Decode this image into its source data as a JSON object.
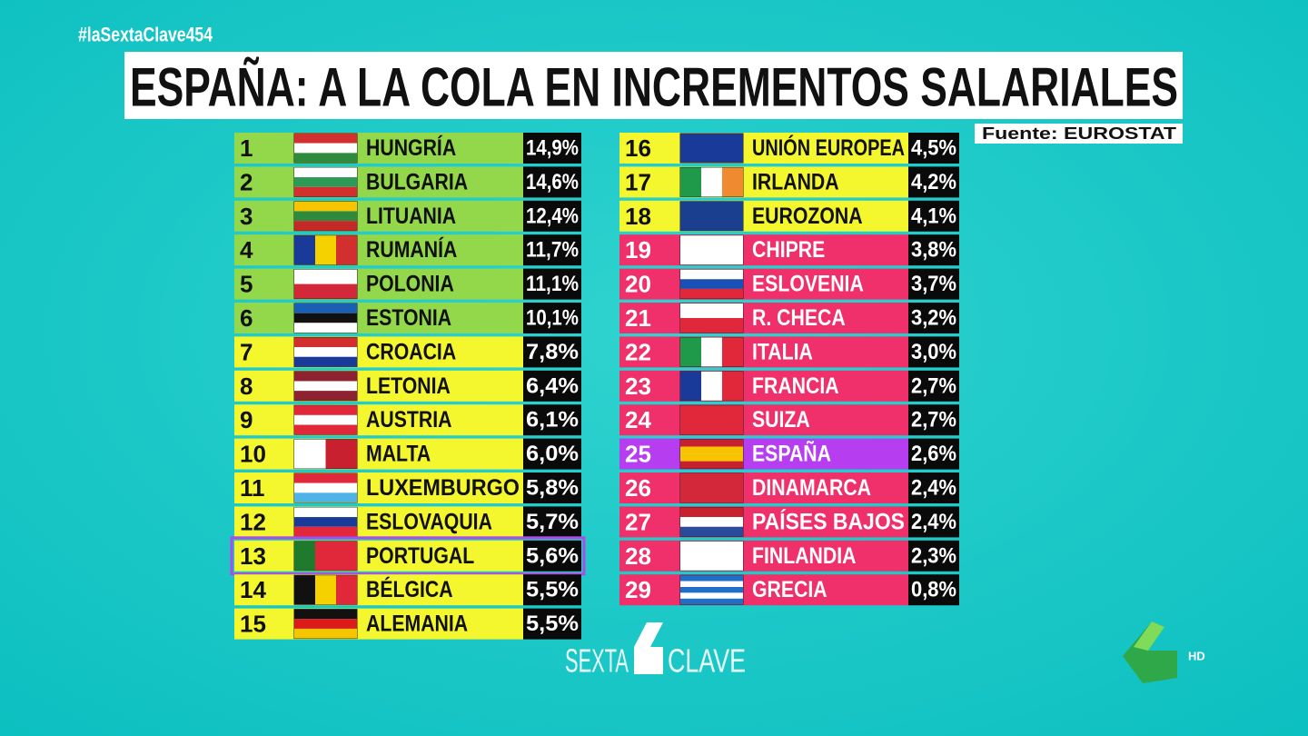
{
  "header": {
    "hashtag": "#laSextaClave454",
    "title": "ESPAÑA: A LA COLA EN INCREMENTOS SALARIALES",
    "source": "Fuente: EUROSTAT"
  },
  "table": {
    "rows": [
      {
        "rank": 1,
        "country": "HUNGRÍA",
        "value": "14,9%",
        "color": "#93d84a",
        "text_color": "#111111"
      },
      {
        "rank": 2,
        "country": "BULGARIA",
        "value": "14,6%",
        "color": "#93d84a",
        "text_color": "#111111"
      },
      {
        "rank": 3,
        "country": "LITUANIA",
        "value": "12,4%",
        "color": "#93d84a",
        "text_color": "#111111"
      },
      {
        "rank": 4,
        "country": "RUMANÍA",
        "value": "11,7%",
        "color": "#93d84a",
        "text_color": "#111111"
      },
      {
        "rank": 5,
        "country": "POLONIA",
        "value": "11,1%",
        "color": "#93d84a",
        "text_color": "#111111"
      },
      {
        "rank": 6,
        "country": "ESTONIA",
        "value": "10,1%",
        "color": "#93d84a",
        "text_color": "#111111"
      },
      {
        "rank": 7,
        "country": "CROACIA",
        "value": "7,8%",
        "color": "#f4f62e",
        "text_color": "#111111"
      },
      {
        "rank": 8,
        "country": "LETONIA",
        "value": "6,4%",
        "color": "#f4f62e",
        "text_color": "#111111"
      },
      {
        "rank": 9,
        "country": "AUSTRIA",
        "value": "6,1%",
        "color": "#f4f62e",
        "text_color": "#111111"
      },
      {
        "rank": 10,
        "country": "MALTA",
        "value": "6,0%",
        "color": "#f4f62e",
        "text_color": "#111111"
      },
      {
        "rank": 11,
        "country": "LUXEMBURGO",
        "value": "5,8%",
        "color": "#f4f62e",
        "text_color": "#111111"
      },
      {
        "rank": 12,
        "country": "ESLOVAQUIA",
        "value": "5,7%",
        "color": "#f4f62e",
        "text_color": "#111111"
      },
      {
        "rank": 13,
        "country": "PORTUGAL",
        "value": "5,6%",
        "color": "#f4f62e",
        "text_color": "#111111",
        "highlight": "#b04be8"
      },
      {
        "rank": 14,
        "country": "BÉLGICA",
        "value": "5,5%",
        "color": "#f4f62e",
        "text_color": "#111111"
      },
      {
        "rank": 15,
        "country": "ALEMANIA",
        "value": "5,5%",
        "color": "#f4f62e",
        "text_color": "#111111"
      },
      {
        "rank": 16,
        "country": "UNIÓN EUROPEA",
        "value": "4,5%",
        "color": "#f4f62e",
        "text_color": "#111111"
      },
      {
        "rank": 17,
        "country": "IRLANDA",
        "value": "4,2%",
        "color": "#f4f62e",
        "text_color": "#111111"
      },
      {
        "rank": 18,
        "country": "EUROZONA",
        "value": "4,1%",
        "color": "#f4f62e",
        "text_color": "#111111"
      },
      {
        "rank": 19,
        "country": "CHIPRE",
        "value": "3,8%",
        "color": "#f0306a",
        "text_color": "#ffffff"
      },
      {
        "rank": 20,
        "country": "ESLOVENIA",
        "value": "3,7%",
        "color": "#f0306a",
        "text_color": "#ffffff"
      },
      {
        "rank": 21,
        "country": "R. CHECA",
        "value": "3,2%",
        "color": "#f0306a",
        "text_color": "#ffffff"
      },
      {
        "rank": 22,
        "country": "ITALIA",
        "value": "3,0%",
        "color": "#f0306a",
        "text_color": "#ffffff"
      },
      {
        "rank": 23,
        "country": "FRANCIA",
        "value": "2,7%",
        "color": "#f0306a",
        "text_color": "#ffffff"
      },
      {
        "rank": 24,
        "country": "SUIZA",
        "value": "2,7%",
        "color": "#f0306a",
        "text_color": "#ffffff"
      },
      {
        "rank": 25,
        "country": "ESPAÑA",
        "value": "2,6%",
        "color": "#b63ef0",
        "text_color": "#ffffff"
      },
      {
        "rank": 26,
        "country": "DINAMARCA",
        "value": "2,4%",
        "color": "#f0306a",
        "text_color": "#ffffff"
      },
      {
        "rank": 27,
        "country": "PAÍSES BAJOS",
        "value": "2,4%",
        "color": "#f0306a",
        "text_color": "#ffffff"
      },
      {
        "rank": 28,
        "country": "FINLANDIA",
        "value": "2,3%",
        "color": "#f0306a",
        "text_color": "#ffffff"
      },
      {
        "rank": 29,
        "country": "GRECIA",
        "value": "0,8%",
        "color": "#f0306a",
        "text_color": "#ffffff"
      }
    ]
  },
  "branding": {
    "show_left": "SEXTA",
    "show_right": "CLAVE",
    "quality": "HD"
  }
}
